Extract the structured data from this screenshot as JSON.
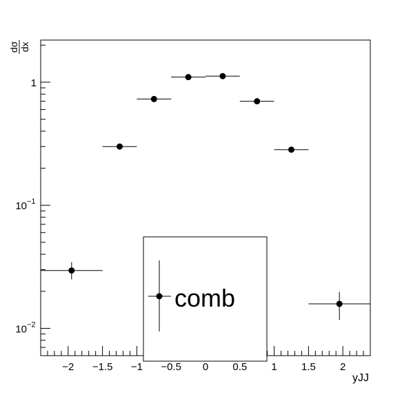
{
  "chart_data": {
    "type": "scatter",
    "title": "",
    "xlabel": "yJJ",
    "ylabel_num": "dσ",
    "ylabel_den": "dx",
    "xlim": [
      -2.4,
      2.4
    ],
    "ylim": [
      0.006,
      2.2
    ],
    "yscale": "log",
    "grid": false,
    "x_ticks": [
      {
        "v": -2,
        "label": "−2"
      },
      {
        "v": -1.5,
        "label": "−1.5"
      },
      {
        "v": -1,
        "label": "−1"
      },
      {
        "v": -0.5,
        "label": "−0.5"
      },
      {
        "v": 0,
        "label": "0"
      },
      {
        "v": 0.5,
        "label": "0.5"
      },
      {
        "v": 1,
        "label": "1"
      },
      {
        "v": 1.5,
        "label": "1.5"
      },
      {
        "v": 2,
        "label": "2"
      }
    ],
    "y_major_ticks": [
      {
        "v": 0.01,
        "base": "10",
        "exp": "−2"
      },
      {
        "v": 0.1,
        "base": "10",
        "exp": "−1"
      },
      {
        "v": 1,
        "base": "1",
        "exp": ""
      }
    ],
    "series": [
      {
        "name": "comb",
        "marker": "circle",
        "color": "#000000",
        "points": [
          {
            "x": -1.95,
            "xlo": -2.4,
            "xhi": -1.5,
            "y": 0.0295,
            "ylo": 0.025,
            "yhi": 0.0345
          },
          {
            "x": -1.25,
            "xlo": -1.5,
            "xhi": -1.0,
            "y": 0.3,
            "ylo": 0.293,
            "yhi": 0.308
          },
          {
            "x": -0.75,
            "xlo": -1.0,
            "xhi": -0.5,
            "y": 0.73,
            "ylo": 0.72,
            "yhi": 0.742
          },
          {
            "x": -0.25,
            "xlo": -0.5,
            "xhi": 0.0,
            "y": 1.1,
            "ylo": 1.085,
            "yhi": 1.115
          },
          {
            "x": 0.25,
            "xlo": 0.0,
            "xhi": 0.5,
            "y": 1.12,
            "ylo": 1.105,
            "yhi": 1.135
          },
          {
            "x": 0.75,
            "xlo": 0.5,
            "xhi": 1.0,
            "y": 0.7,
            "ylo": 0.69,
            "yhi": 0.711
          },
          {
            "x": 1.25,
            "xlo": 1.0,
            "xhi": 1.5,
            "y": 0.283,
            "ylo": 0.276,
            "yhi": 0.29
          },
          {
            "x": 1.95,
            "xlo": 1.5,
            "xhi": 2.4,
            "y": 0.0158,
            "ylo": 0.0117,
            "yhi": 0.0198
          }
        ]
      }
    ],
    "legend": {
      "label": "comb",
      "placement": "bottom-center"
    }
  }
}
